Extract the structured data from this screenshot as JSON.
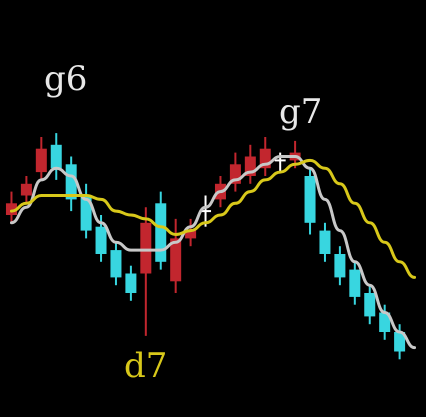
{
  "chart_data": {
    "type": "candlestick",
    "colors": {
      "background": "#000000",
      "up": "#c2262e",
      "down": "#38d6e0",
      "neutral": "#ffffff",
      "ma_fast": "#c8c8c8",
      "ma_slow": "#d8c81a",
      "label_white": "#e8e8e8",
      "label_yellow": "#d8c81a"
    },
    "ylim": [
      0,
      10
    ],
    "xlim": [
      0,
      28
    ],
    "annotations": [
      {
        "text": "g6",
        "color": "label_white"
      },
      {
        "text": "g7",
        "color": "label_white"
      },
      {
        "text": "d7",
        "color": "label_yellow"
      }
    ],
    "candles": [
      {
        "t": 0,
        "open": 5.0,
        "close": 5.3,
        "high": 5.6,
        "low": 4.8,
        "dir": "up"
      },
      {
        "t": 1,
        "open": 5.5,
        "close": 5.8,
        "high": 6.0,
        "low": 5.3,
        "dir": "up"
      },
      {
        "t": 2,
        "open": 6.1,
        "close": 6.7,
        "high": 7.0,
        "low": 5.9,
        "dir": "up"
      },
      {
        "t": 3,
        "open": 6.8,
        "close": 6.2,
        "high": 7.1,
        "low": 5.9,
        "dir": "down"
      },
      {
        "t": 4,
        "open": 6.3,
        "close": 5.4,
        "high": 6.5,
        "low": 5.1,
        "dir": "down"
      },
      {
        "t": 5,
        "open": 5.5,
        "close": 4.6,
        "high": 5.8,
        "low": 4.4,
        "dir": "down"
      },
      {
        "t": 6,
        "open": 4.7,
        "close": 4.0,
        "high": 5.0,
        "low": 3.8,
        "dir": "down"
      },
      {
        "t": 7,
        "open": 4.1,
        "close": 3.4,
        "high": 4.3,
        "low": 3.2,
        "dir": "down"
      },
      {
        "t": 8,
        "open": 3.5,
        "close": 3.0,
        "high": 3.7,
        "low": 2.8,
        "dir": "down"
      },
      {
        "t": 9,
        "open": 3.5,
        "close": 4.8,
        "high": 5.2,
        "low": 1.9,
        "dir": "up"
      },
      {
        "t": 10,
        "open": 5.3,
        "close": 3.8,
        "high": 5.6,
        "low": 3.6,
        "dir": "down"
      },
      {
        "t": 11,
        "open": 3.3,
        "close": 4.4,
        "high": 4.9,
        "low": 3.0,
        "dir": "up"
      },
      {
        "t": 12,
        "open": 4.4,
        "close": 4.6,
        "high": 4.9,
        "low": 4.2,
        "dir": "up"
      },
      {
        "t": 13,
        "open": 5.0,
        "close": 5.1,
        "high": 5.5,
        "low": 4.7,
        "dir": "neutral"
      },
      {
        "t": 14,
        "open": 5.4,
        "close": 5.8,
        "high": 6.0,
        "low": 5.2,
        "dir": "up"
      },
      {
        "t": 15,
        "open": 5.8,
        "close": 6.3,
        "high": 6.6,
        "low": 5.6,
        "dir": "up"
      },
      {
        "t": 16,
        "open": 6.0,
        "close": 6.5,
        "high": 6.8,
        "low": 5.8,
        "dir": "up"
      },
      {
        "t": 17,
        "open": 6.2,
        "close": 6.7,
        "high": 7.0,
        "low": 6.0,
        "dir": "up"
      },
      {
        "t": 18,
        "open": 6.3,
        "close": 6.4,
        "high": 6.6,
        "low": 6.1,
        "dir": "neutral"
      },
      {
        "t": 19,
        "open": 6.4,
        "close": 6.6,
        "high": 6.9,
        "low": 6.2,
        "dir": "up"
      },
      {
        "t": 20,
        "open": 6.0,
        "close": 4.8,
        "high": 6.2,
        "low": 4.5,
        "dir": "down"
      },
      {
        "t": 21,
        "open": 4.6,
        "close": 4.0,
        "high": 4.8,
        "low": 3.8,
        "dir": "down"
      },
      {
        "t": 22,
        "open": 4.0,
        "close": 3.4,
        "high": 4.2,
        "low": 3.2,
        "dir": "down"
      },
      {
        "t": 23,
        "open": 3.6,
        "close": 2.9,
        "high": 3.8,
        "low": 2.7,
        "dir": "down"
      },
      {
        "t": 24,
        "open": 3.0,
        "close": 2.4,
        "high": 3.2,
        "low": 2.2,
        "dir": "down"
      },
      {
        "t": 25,
        "open": 2.5,
        "close": 2.0,
        "high": 2.7,
        "low": 1.8,
        "dir": "down"
      },
      {
        "t": 26,
        "open": 2.0,
        "close": 1.5,
        "high": 2.2,
        "low": 1.3,
        "dir": "down"
      }
    ],
    "series": [
      {
        "key": "ma_fast",
        "points": [
          [
            0,
            4.8
          ],
          [
            1,
            5.2
          ],
          [
            2,
            5.9
          ],
          [
            3,
            6.2
          ],
          [
            4,
            6.0
          ],
          [
            5,
            5.4
          ],
          [
            6,
            4.8
          ],
          [
            7,
            4.3
          ],
          [
            8,
            4.1
          ],
          [
            9,
            4.1
          ],
          [
            10,
            4.1
          ],
          [
            11,
            4.3
          ],
          [
            12,
            4.7
          ],
          [
            13,
            5.2
          ],
          [
            14,
            5.6
          ],
          [
            15,
            5.9
          ],
          [
            16,
            6.1
          ],
          [
            17,
            6.3
          ],
          [
            18,
            6.5
          ],
          [
            19,
            6.5
          ],
          [
            20,
            6.2
          ],
          [
            21,
            5.4
          ],
          [
            22,
            4.6
          ],
          [
            23,
            3.8
          ],
          [
            24,
            3.2
          ],
          [
            25,
            2.5
          ],
          [
            26,
            2.0
          ],
          [
            27,
            1.6
          ]
        ]
      },
      {
        "key": "ma_slow",
        "points": [
          [
            0,
            5.1
          ],
          [
            1,
            5.3
          ],
          [
            2,
            5.5
          ],
          [
            3,
            5.5
          ],
          [
            4,
            5.5
          ],
          [
            5,
            5.5
          ],
          [
            6,
            5.4
          ],
          [
            7,
            5.1
          ],
          [
            8,
            5.0
          ],
          [
            9,
            4.9
          ],
          [
            10,
            4.7
          ],
          [
            11,
            4.5
          ],
          [
            12,
            4.6
          ],
          [
            13,
            4.8
          ],
          [
            14,
            5.0
          ],
          [
            15,
            5.3
          ],
          [
            16,
            5.6
          ],
          [
            17,
            5.9
          ],
          [
            18,
            6.1
          ],
          [
            19,
            6.3
          ],
          [
            20,
            6.4
          ],
          [
            21,
            6.2
          ],
          [
            22,
            5.8
          ],
          [
            23,
            5.3
          ],
          [
            24,
            4.8
          ],
          [
            25,
            4.3
          ],
          [
            26,
            3.8
          ],
          [
            27,
            3.4
          ]
        ]
      }
    ]
  }
}
